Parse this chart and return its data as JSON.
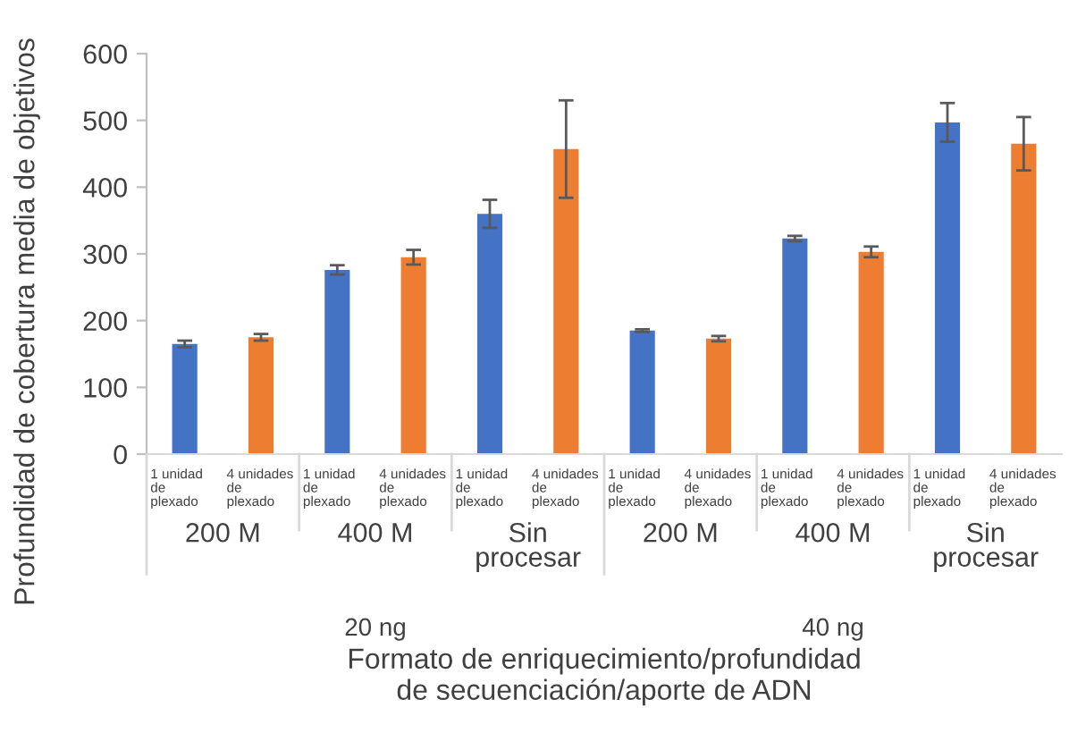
{
  "chart_data": {
    "type": "bar",
    "ylabel": "Profundidad de cobertura media de objetivos",
    "xlabel": "Formato de enriquecimiento/profundidad\nde secuenciación/aporte de ADN",
    "categories": [
      "1 unidad\nde\nplexado",
      "4 unidades\nde\nplexado",
      "1 unidad\nde\nplexado",
      "4 unidades\nde\nplexado",
      "1 unidad\nde\nplexado",
      "4 unidades\nde\nplexado",
      "1 unidad\nde\nplexado",
      "4 unidades\nde\nplexado",
      "1 unidad\nde\nplexado",
      "4 unidades\nde\nplexado",
      "1 unidad\nde\nplexado",
      "4 unidades\nde\nplexado"
    ],
    "values": [
      165,
      175,
      276,
      295,
      360,
      457,
      185,
      173,
      323,
      303,
      497,
      465
    ],
    "errors": [
      5,
      5,
      7,
      11,
      21,
      73,
      2,
      4,
      4,
      8,
      29,
      40
    ],
    "colors": [
      "#4472c4",
      "#ed7d31",
      "#4472c4",
      "#ed7d31",
      "#4472c4",
      "#ed7d31",
      "#4472c4",
      "#ed7d31",
      "#4472c4",
      "#ed7d31",
      "#4472c4",
      "#ed7d31"
    ],
    "annotations": [
      "200 M",
      "400 M",
      "Sin\nprocesar",
      "200 M",
      "400 M",
      "Sin\nprocesar",
      "20 ng",
      "40 ng"
    ],
    "ylim": [
      0,
      600
    ],
    "yticks": [
      0,
      100,
      200,
      300,
      400,
      500,
      600
    ],
    "grid": false,
    "legend": false
  }
}
